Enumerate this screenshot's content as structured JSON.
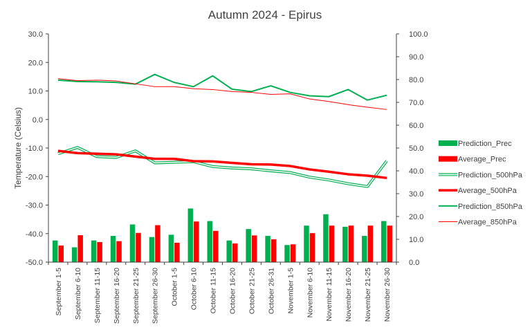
{
  "chart_data": {
    "type": "bar",
    "title": "Autumn 2024 - Epirus",
    "ylabel": "Temperature (Celsius)",
    "y2label": "",
    "ylim": [
      -50,
      30
    ],
    "y2lim": [
      0,
      100
    ],
    "yticks": [
      "30.0",
      "20.0",
      "10.0",
      "0.0",
      "-10.0",
      "-20.0",
      "-30.0",
      "-40.0",
      "-50.0"
    ],
    "y2ticks": [
      "100.0",
      "90.0",
      "80.0",
      "70.0",
      "60.0",
      "50.0",
      "40.0",
      "30.0",
      "20.0",
      "10.0",
      "0.0"
    ],
    "grid": false,
    "legend_position": "right",
    "colors": {
      "green": "#00b050",
      "red": "#ff0000",
      "axis": "#404040"
    },
    "categories": [
      "September 1-5",
      "September 6-10",
      "September 11-15",
      "September 16-20",
      "September 21-25",
      "September 26-30",
      "October 1-5",
      "October 6-10",
      "October 11-15",
      "October 16-20",
      "October 21-25",
      "October 26-31",
      "November 1-5",
      "November 6-10",
      "November 11-15",
      "November 16-20",
      "November 21-25",
      "November 26-30"
    ],
    "series": [
      {
        "name": "Prediction_Prec",
        "kind": "bar",
        "axis": "right",
        "color": "#00b050",
        "values": [
          9.5,
          6.5,
          9.5,
          11.5,
          16.5,
          11,
          12,
          23.5,
          18,
          9.5,
          14.5,
          11.5,
          7.5,
          16,
          21,
          15.5,
          11.5,
          18
        ]
      },
      {
        "name": "Average_Prec",
        "kind": "bar",
        "axis": "right",
        "color": "#ff0000",
        "values": [
          7.3,
          11.8,
          8.8,
          9.2,
          12.8,
          16.2,
          8.5,
          17.8,
          13.7,
          8.2,
          11.7,
          10,
          7.8,
          12.7,
          16,
          16,
          16,
          16
        ]
      },
      {
        "name": "Prediction_500hPa",
        "kind": "line-double",
        "axis": "left",
        "color": "#00b050",
        "values": [
          -12,
          -9.8,
          -13,
          -13.3,
          -11,
          -15.2,
          -15,
          -14.8,
          -16.5,
          -17,
          -17.3,
          -18,
          -18.6,
          -20.2,
          -21.2,
          -22.5,
          -23.5,
          -14.5
        ]
      },
      {
        "name": "Average_500hPa",
        "kind": "line-thick",
        "axis": "left",
        "color": "#ff0000",
        "values": [
          -11,
          -11.8,
          -12,
          -12.2,
          -13,
          -13.8,
          -13.8,
          -14.6,
          -14.7,
          -15.2,
          -15.7,
          -15.8,
          -16.3,
          -17.5,
          -18.3,
          -19.2,
          -19.7,
          -20.5
        ]
      },
      {
        "name": "Prediction_850hPa",
        "kind": "line",
        "axis": "left",
        "color": "#00b050",
        "values": [
          13.8,
          13.3,
          13.2,
          13,
          12.4,
          15.8,
          13,
          11.5,
          15.3,
          10.6,
          9.8,
          11.8,
          9.5,
          8.3,
          8,
          10.5,
          6.8,
          8.5
        ]
      },
      {
        "name": "Average_850hPa",
        "kind": "line-thin",
        "axis": "left",
        "color": "#ff0000",
        "values": [
          14.3,
          13.6,
          13.8,
          13.5,
          12.5,
          11.5,
          11.5,
          10.8,
          10.5,
          9.8,
          9.5,
          8.8,
          9,
          7.2,
          6.3,
          5.2,
          4.3,
          3.5
        ]
      }
    ]
  }
}
